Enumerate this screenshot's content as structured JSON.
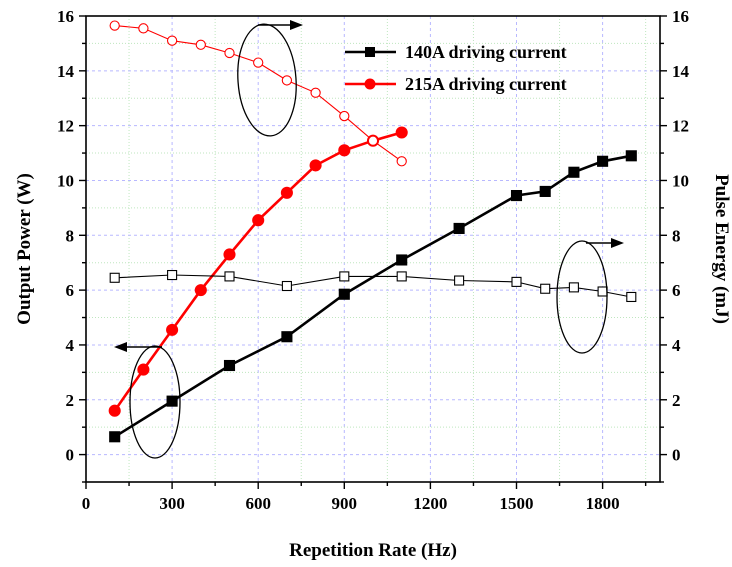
{
  "chart_data": {
    "type": "line",
    "xlabel": "Repetition Rate (Hz)",
    "ylabel_left": "Output Power (W)",
    "ylabel_right": "Pulse Energy (mJ)",
    "xlim": [
      0,
      2000
    ],
    "ylim_left": [
      -1,
      16
    ],
    "ylim_right": [
      -1,
      16
    ],
    "x_ticks": [
      0,
      300,
      600,
      900,
      1200,
      1500,
      1800
    ],
    "y_ticks": [
      0,
      2,
      4,
      6,
      8,
      10,
      12,
      14,
      16
    ],
    "grid": true,
    "legend_position": "top-right",
    "series": [
      {
        "name": "140A driving current",
        "axis": "left",
        "marker": "filled-square",
        "color": "#000000",
        "x": [
          100,
          300,
          500,
          700,
          900,
          1100,
          1300,
          1500,
          1600,
          1700,
          1800,
          1900
        ],
        "y": [
          0.65,
          1.95,
          3.25,
          4.3,
          5.85,
          7.1,
          8.25,
          9.45,
          9.6,
          10.3,
          10.7,
          10.9
        ]
      },
      {
        "name": "215A driving current",
        "axis": "left",
        "marker": "filled-circle",
        "color": "#ff0000",
        "x": [
          100,
          200,
          300,
          400,
          500,
          600,
          700,
          800,
          900,
          1000,
          1100
        ],
        "y": [
          1.6,
          3.1,
          4.55,
          6.0,
          7.3,
          8.55,
          9.55,
          10.55,
          11.1,
          11.45,
          11.75
        ]
      },
      {
        "axis": "right",
        "marker": "open-square",
        "color": "#000000",
        "x": [
          100,
          300,
          500,
          700,
          900,
          1100,
          1300,
          1500,
          1600,
          1700,
          1800,
          1900
        ],
        "y": [
          6.45,
          6.55,
          6.5,
          6.15,
          6.5,
          6.5,
          6.35,
          6.3,
          6.05,
          6.1,
          5.95,
          5.75
        ]
      },
      {
        "axis": "right",
        "marker": "open-circle",
        "color": "#ff0000",
        "x": [
          100,
          200,
          300,
          400,
          500,
          600,
          700,
          800,
          900,
          1000,
          1100
        ],
        "y": [
          15.65,
          15.55,
          15.1,
          14.95,
          14.65,
          14.3,
          13.65,
          13.2,
          12.35,
          11.45,
          10.7
        ]
      }
    ]
  }
}
